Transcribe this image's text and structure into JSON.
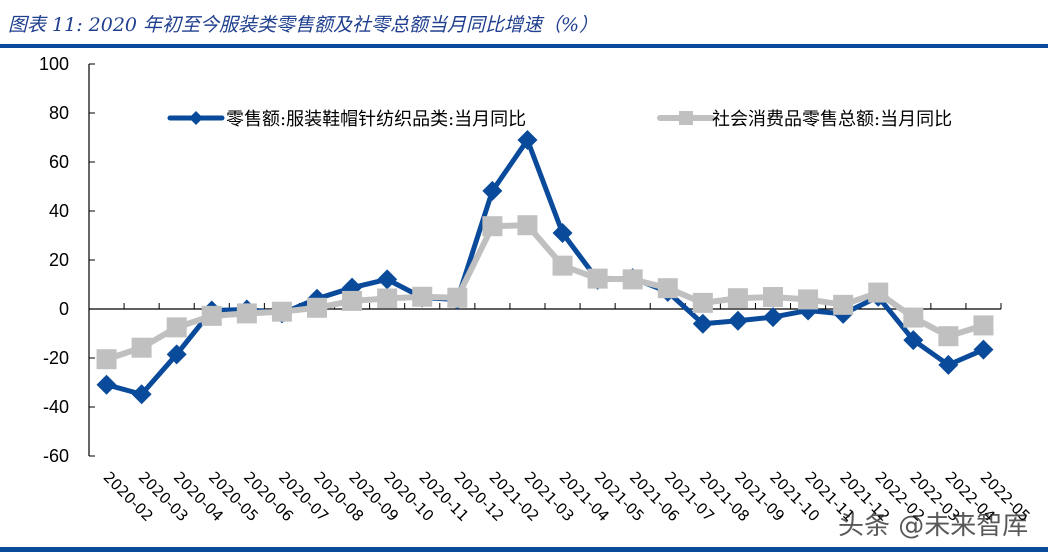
{
  "header": {
    "title": "图表 11:  2020 年初至今服装类零售额及社零总额当月同比增速（%）"
  },
  "watermark": "头条 @未来智库",
  "colors": {
    "series_apparel": "#0a4a9a",
    "series_total": "#c0c0c0",
    "rule": "#0a4a9a",
    "title": "#1f3f8f"
  },
  "chart_data": {
    "type": "line",
    "title": "2020年初至今服装类零售额及社零总额当月同比增速（%）",
    "xlabel": "",
    "ylabel": "",
    "ylim": [
      -60,
      100
    ],
    "yticks": [
      100,
      80,
      60,
      40,
      20,
      0,
      -20,
      -40,
      -60
    ],
    "grid": false,
    "legend_position": "top",
    "categories": [
      "2020-02",
      "2020-03",
      "2020-04",
      "2020-05",
      "2020-06",
      "2020-07",
      "2020-08",
      "2020-09",
      "2020-10",
      "2020-11",
      "2020-12",
      "2021-02",
      "2021-03",
      "2021-04",
      "2021-05",
      "2021-06",
      "2021-07",
      "2021-08",
      "2021-09",
      "2021-10",
      "2021-11",
      "2021-12",
      "2022-02",
      "2022-03",
      "2022-04",
      "2022-05"
    ],
    "series": [
      {
        "name": "零售额:服装鞋帽针纺织品类:当月同比",
        "marker": "diamond",
        "color": "#0a4a9a",
        "values": [
          -30.9,
          -34.8,
          -18.5,
          -0.6,
          -0.2,
          -1.8,
          4.2,
          8.7,
          12.1,
          4.7,
          3.8,
          48.2,
          69.0,
          31.0,
          11.9,
          12.6,
          7.0,
          -6.0,
          -4.8,
          -3.3,
          -0.6,
          -2.0,
          5.0,
          -12.7,
          -22.8,
          -16.6
        ]
      },
      {
        "name": "社会消费品零售总额:当月同比",
        "marker": "square",
        "color": "#c0c0c0",
        "values": [
          -20.5,
          -15.8,
          -7.5,
          -2.8,
          -1.8,
          -1.1,
          0.5,
          3.3,
          4.3,
          5.0,
          4.6,
          33.8,
          34.2,
          17.7,
          12.4,
          12.1,
          8.5,
          2.5,
          4.4,
          4.9,
          3.9,
          1.7,
          6.7,
          -3.5,
          -11.1,
          -6.7
        ]
      }
    ]
  }
}
